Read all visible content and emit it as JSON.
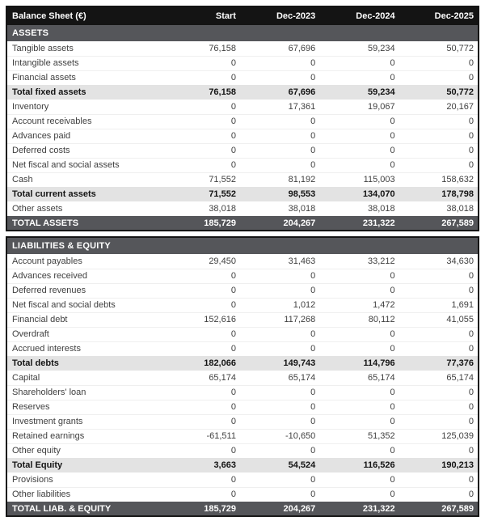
{
  "table": {
    "title": "Balance Sheet (€)",
    "columns": [
      "Start",
      "Dec-2023",
      "Dec-2024",
      "Dec-2025"
    ],
    "colors": {
      "header_bg": "#141414",
      "section_bg": "#55565a",
      "subtotal_bg": "#e3e3e3",
      "normal_text": "#3f3f3f",
      "header_text": "#ffffff"
    },
    "sections": [
      {
        "header": "ASSETS",
        "rows": [
          {
            "label": "Tangible assets",
            "values": [
              "76,158",
              "67,696",
              "59,234",
              "50,772"
            ],
            "style": "normal"
          },
          {
            "label": "Intangible assets",
            "values": [
              "0",
              "0",
              "0",
              "0"
            ],
            "style": "normal"
          },
          {
            "label": "Financial assets",
            "values": [
              "0",
              "0",
              "0",
              "0"
            ],
            "style": "normal"
          },
          {
            "label": "Total fixed assets",
            "values": [
              "76,158",
              "67,696",
              "59,234",
              "50,772"
            ],
            "style": "subtotal"
          },
          {
            "label": "Inventory",
            "values": [
              "0",
              "17,361",
              "19,067",
              "20,167"
            ],
            "style": "normal"
          },
          {
            "label": "Account receivables",
            "values": [
              "0",
              "0",
              "0",
              "0"
            ],
            "style": "normal"
          },
          {
            "label": "Advances paid",
            "values": [
              "0",
              "0",
              "0",
              "0"
            ],
            "style": "normal"
          },
          {
            "label": "Deferred costs",
            "values": [
              "0",
              "0",
              "0",
              "0"
            ],
            "style": "normal"
          },
          {
            "label": "Net fiscal and social assets",
            "values": [
              "0",
              "0",
              "0",
              "0"
            ],
            "style": "normal"
          },
          {
            "label": "Cash",
            "values": [
              "71,552",
              "81,192",
              "115,003",
              "158,632"
            ],
            "style": "normal"
          },
          {
            "label": "Total current assets",
            "values": [
              "71,552",
              "98,553",
              "134,070",
              "178,798"
            ],
            "style": "subtotal"
          },
          {
            "label": "Other assets",
            "values": [
              "38,018",
              "38,018",
              "38,018",
              "38,018"
            ],
            "style": "normal"
          },
          {
            "label": "TOTAL ASSETS",
            "values": [
              "185,729",
              "204,267",
              "231,322",
              "267,589"
            ],
            "style": "grand"
          }
        ]
      },
      {
        "header": "LIABILITIES & EQUITY",
        "rows": [
          {
            "label": "Account payables",
            "values": [
              "29,450",
              "31,463",
              "33,212",
              "34,630"
            ],
            "style": "normal"
          },
          {
            "label": "Advances received",
            "values": [
              "0",
              "0",
              "0",
              "0"
            ],
            "style": "normal"
          },
          {
            "label": "Deferred revenues",
            "values": [
              "0",
              "0",
              "0",
              "0"
            ],
            "style": "normal"
          },
          {
            "label": "Net fiscal and social debts",
            "values": [
              "0",
              "1,012",
              "1,472",
              "1,691"
            ],
            "style": "normal"
          },
          {
            "label": "Financial debt",
            "values": [
              "152,616",
              "117,268",
              "80,112",
              "41,055"
            ],
            "style": "normal"
          },
          {
            "label": "Overdraft",
            "values": [
              "0",
              "0",
              "0",
              "0"
            ],
            "style": "normal"
          },
          {
            "label": "Accrued interests",
            "values": [
              "0",
              "0",
              "0",
              "0"
            ],
            "style": "normal"
          },
          {
            "label": "Total debts",
            "values": [
              "182,066",
              "149,743",
              "114,796",
              "77,376"
            ],
            "style": "subtotal"
          },
          {
            "label": "Capital",
            "values": [
              "65,174",
              "65,174",
              "65,174",
              "65,174"
            ],
            "style": "normal"
          },
          {
            "label": "Shareholders' loan",
            "values": [
              "0",
              "0",
              "0",
              "0"
            ],
            "style": "normal"
          },
          {
            "label": "Reserves",
            "values": [
              "0",
              "0",
              "0",
              "0"
            ],
            "style": "normal"
          },
          {
            "label": "Investment grants",
            "values": [
              "0",
              "0",
              "0",
              "0"
            ],
            "style": "normal"
          },
          {
            "label": "Retained earnings",
            "values": [
              "-61,511",
              "-10,650",
              "51,352",
              "125,039"
            ],
            "style": "normal"
          },
          {
            "label": "Other equity",
            "values": [
              "0",
              "0",
              "0",
              "0"
            ],
            "style": "normal"
          },
          {
            "label": "Total Equity",
            "values": [
              "3,663",
              "54,524",
              "116,526",
              "190,213"
            ],
            "style": "subtotal"
          },
          {
            "label": "Provisions",
            "values": [
              "0",
              "0",
              "0",
              "0"
            ],
            "style": "normal"
          },
          {
            "label": "Other liabilities",
            "values": [
              "0",
              "0",
              "0",
              "0"
            ],
            "style": "normal"
          },
          {
            "label": "TOTAL LIAB. & EQUITY",
            "values": [
              "185,729",
              "204,267",
              "231,322",
              "267,589"
            ],
            "style": "grand"
          }
        ]
      }
    ]
  }
}
